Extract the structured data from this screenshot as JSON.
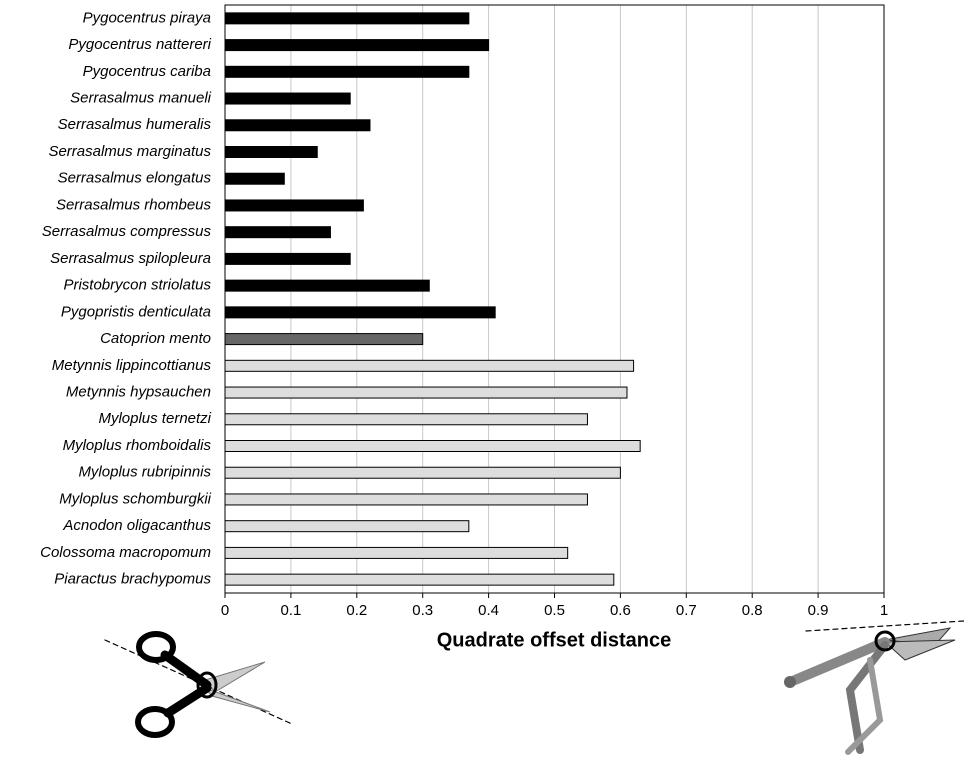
{
  "chart_data": {
    "type": "bar",
    "orientation": "horizontal",
    "x_label": "Quadrate offset distance",
    "categories": [
      "Pygocentrus piraya",
      "Pygocentrus nattereri",
      "Pygocentrus cariba",
      "Serrasalmus manueli",
      "Serrasalmus humeralis",
      "Serrasalmus marginatus",
      "Serrasalmus elongatus",
      "Serrasalmus rhombeus",
      "Serrasalmus compressus",
      "Serrasalmus spilopleura",
      "Pristobrycon striolatus",
      "Pygopristis denticulata",
      "Catoprion mento",
      "Metynnis lippincottianus",
      "Metynnis hypsauchen",
      "Myloplus ternetzi",
      "Myloplus rhomboidalis",
      "Myloplus rubripinnis",
      "Myloplus schomburgkii",
      "Acnodon oligacanthus",
      "Colossoma macropomum",
      "Piaractus brachypomus"
    ],
    "values": [
      0.37,
      0.4,
      0.37,
      0.19,
      0.22,
      0.14,
      0.09,
      0.21,
      0.16,
      0.19,
      0.31,
      0.41,
      0.3,
      0.62,
      0.61,
      0.55,
      0.63,
      0.6,
      0.55,
      0.37,
      0.52,
      0.59
    ],
    "colors": [
      "#000000",
      "#000000",
      "#000000",
      "#000000",
      "#000000",
      "#000000",
      "#000000",
      "#000000",
      "#000000",
      "#000000",
      "#000000",
      "#000000",
      "#666666",
      "#dddddd",
      "#dddddd",
      "#dddddd",
      "#dddddd",
      "#dddddd",
      "#dddddd",
      "#dddddd",
      "#dddddd",
      "#dddddd"
    ],
    "xlim": [
      0,
      1
    ],
    "xticks": [
      0,
      0.1,
      0.2,
      0.3,
      0.4,
      0.5,
      0.6,
      0.7,
      0.8,
      0.9,
      1
    ],
    "grid": true
  }
}
